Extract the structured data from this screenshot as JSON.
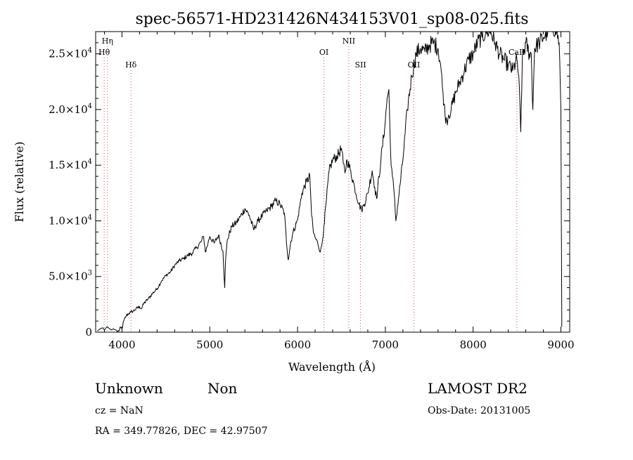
{
  "chart_data": {
    "type": "line",
    "title": "spec-56571-HD231426N434153V01_sp08-025.fits",
    "xlabel": "Wavelength (Å)",
    "ylabel": "Flux (relative)",
    "xlim": [
      3700,
      9100
    ],
    "ylim": [
      0,
      27000
    ],
    "xticks": [
      {
        "value": 4000,
        "label": "4000"
      },
      {
        "value": 5000,
        "label": "5000"
      },
      {
        "value": 6000,
        "label": "6000"
      },
      {
        "value": 7000,
        "label": "7000"
      },
      {
        "value": 8000,
        "label": "8000"
      },
      {
        "value": 9000,
        "label": "9000"
      }
    ],
    "yticks": [
      {
        "value": 0,
        "mant": "0",
        "exp": ""
      },
      {
        "value": 5000,
        "mant": "5.0×10",
        "exp": "3"
      },
      {
        "value": 10000,
        "mant": "1.0×10",
        "exp": "4"
      },
      {
        "value": 15000,
        "mant": "1.5×10",
        "exp": "4"
      },
      {
        "value": 20000,
        "mant": "2.0×10",
        "exp": "4"
      },
      {
        "value": 25000,
        "mant": "2.5×10",
        "exp": "4"
      }
    ],
    "line_color": "#000000",
    "marker_color": "#d05050",
    "spectral_lines": [
      {
        "label": "Hη",
        "wavelength": 3835,
        "row": 0
      },
      {
        "label": "Hθ",
        "wavelength": 3797,
        "row": 1
      },
      {
        "label": "Hδ",
        "wavelength": 4102,
        "row": 2
      },
      {
        "label": "OI",
        "wavelength": 6300,
        "row": 1
      },
      {
        "label": "NII",
        "wavelength": 6584,
        "row": 0
      },
      {
        "label": "SII",
        "wavelength": 6717,
        "row": 2
      },
      {
        "label": "OII",
        "wavelength": 7325,
        "row": 2
      },
      {
        "label": "CaII",
        "wavelength": 8498,
        "row": 1
      }
    ],
    "series": [
      {
        "x": [
          3720,
          3750,
          3780,
          3800,
          3830,
          3860,
          3880,
          3900,
          3930,
          3950,
          3970,
          3985,
          4000,
          4020,
          4050,
          4080,
          4100,
          4130,
          4160,
          4200,
          4220,
          4250,
          4300,
          4350,
          4400,
          4450,
          4500,
          4550,
          4600,
          4650,
          4700,
          4750,
          4800,
          4850,
          4900,
          4930,
          4950,
          4980,
          5000,
          5050,
          5100,
          5150,
          5170,
          5180,
          5200,
          5250,
          5300,
          5350,
          5400,
          5450,
          5500,
          5550,
          5600,
          5650,
          5700,
          5750,
          5800,
          5850,
          5880,
          5895,
          5920,
          5950,
          6000,
          6050,
          6100,
          6140,
          6160,
          6180,
          6200,
          6230,
          6260,
          6280,
          6300,
          6330,
          6360,
          6400,
          6450,
          6500,
          6520,
          6540,
          6563,
          6600,
          6650,
          6700,
          6730,
          6760,
          6800,
          6850,
          6880,
          6900,
          6950,
          7000,
          7020,
          7040,
          7060,
          7080,
          7100,
          7120,
          7150,
          7200,
          7250,
          7300,
          7350,
          7400,
          7450,
          7500,
          7550,
          7600,
          7630,
          7650,
          7670,
          7680,
          7700,
          7720,
          7750,
          7800,
          7850,
          7900,
          7950,
          8000,
          8050,
          8100,
          8150,
          8200,
          8250,
          8300,
          8350,
          8400,
          8450,
          8498,
          8520,
          8542,
          8560,
          8600,
          8640,
          8662,
          8680,
          8700,
          8750,
          8800,
          8850,
          8900,
          8950,
          8980,
          9000,
          9010
        ],
        "y": [
          100,
          300,
          400,
          200,
          500,
          300,
          200,
          300,
          200,
          50,
          200,
          400,
          300,
          1000,
          1500,
          1700,
          1800,
          1900,
          2100,
          2300,
          2100,
          2600,
          3000,
          3500,
          3900,
          4600,
          5100,
          5400,
          6000,
          6400,
          6600,
          6900,
          7100,
          7600,
          8100,
          8600,
          7200,
          8000,
          8600,
          8000,
          8700,
          7300,
          4000,
          6500,
          8300,
          9500,
          9800,
          10400,
          11100,
          10500,
          9200,
          10000,
          10500,
          10900,
          11300,
          11800,
          11500,
          10700,
          7500,
          6500,
          8000,
          9000,
          10100,
          12500,
          13500,
          14000,
          10500,
          9000,
          8500,
          8000,
          7200,
          8000,
          9500,
          12000,
          14500,
          15500,
          15800,
          16500,
          15200,
          14300,
          15500,
          14600,
          13000,
          11500,
          11000,
          11500,
          12500,
          14500,
          13000,
          12000,
          15500,
          19000,
          21000,
          21800,
          16000,
          14000,
          12500,
          10000,
          12000,
          15500,
          20000,
          23000,
          25000,
          25500,
          25200,
          25800,
          26000,
          25500,
          24000,
          22000,
          20500,
          19500,
          19000,
          19500,
          20000,
          21500,
          22500,
          23500,
          24500,
          25000,
          26000,
          26500,
          27000,
          27000,
          26000,
          25000,
          24500,
          24000,
          23500,
          24500,
          23000,
          18000,
          24500,
          26000,
          25000,
          25000,
          20000,
          25500,
          26000,
          26500,
          27000,
          27500,
          27000,
          26000,
          20000,
          500
        ]
      }
    ]
  },
  "info": {
    "object_class": "Unknown",
    "subclass": "Non",
    "survey": "LAMOST DR2",
    "cz": "cz = NaN",
    "obs_date": "Obs-Date: 20131005",
    "coords": "RA = 349.77826, DEC =  42.97507"
  }
}
